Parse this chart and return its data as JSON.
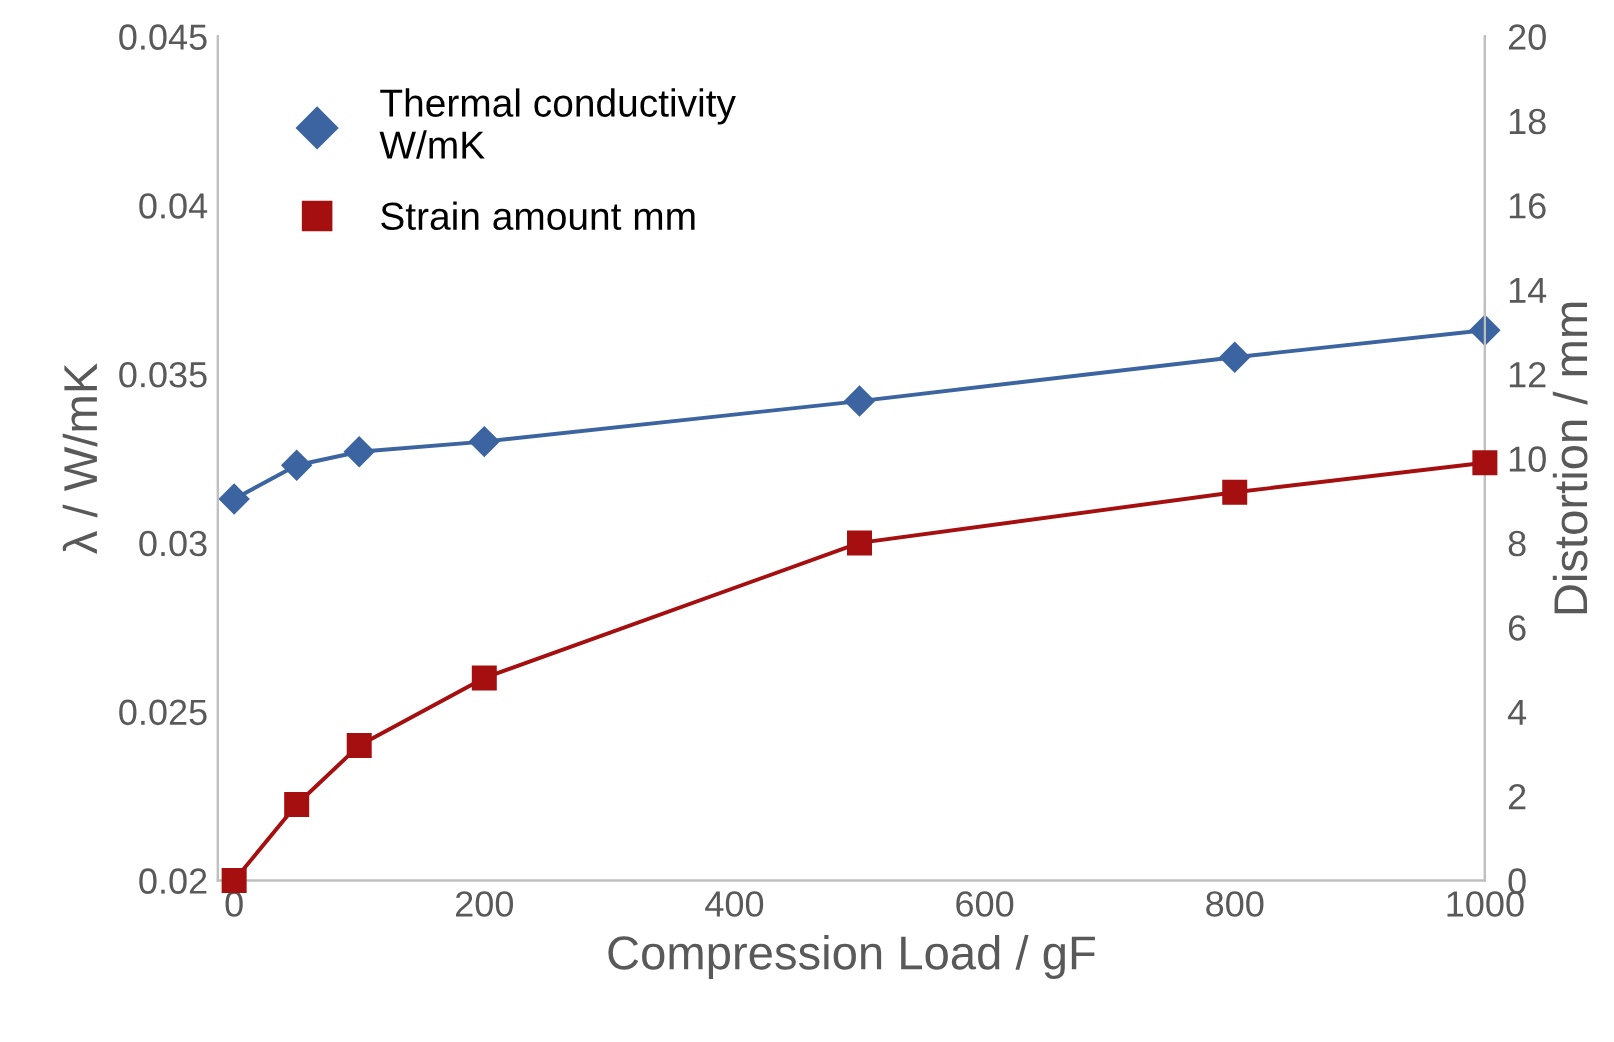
{
  "chart_data": {
    "type": "line",
    "xlabel": "Compression Load / gF",
    "ylabel": "λ / W/mK",
    "y2label": "Distortion / mm",
    "xlim": [
      -13,
      1000
    ],
    "xticks": [
      0,
      200,
      400,
      600,
      800,
      1000
    ],
    "ylim": [
      0.02,
      0.045
    ],
    "yticks": [
      0.02,
      0.025,
      0.03,
      0.035,
      0.04,
      0.045
    ],
    "y2lim": [
      0,
      20
    ],
    "y2ticks": [
      0,
      2,
      4,
      6,
      8,
      10,
      12,
      14,
      16,
      18,
      20
    ],
    "grid": false,
    "legend": "top left",
    "series": [
      {
        "name": "Thermal conductivity\nW/mK",
        "color": "#3b64a0",
        "marker": "diamond",
        "x": [
          0,
          50,
          100,
          200,
          500,
          800,
          1000
        ],
        "values": [
          0.0313,
          0.0323,
          0.0327,
          0.033,
          0.0342,
          0.0355,
          0.0363
        ]
      },
      {
        "name": "Strain amount mm",
        "color": "#a50f0f",
        "marker": "square",
        "axis": "y2",
        "x": [
          0,
          50,
          100,
          200,
          500,
          800,
          1000
        ],
        "values": [
          0,
          1.8,
          3.2,
          4.8,
          8.0,
          9.2,
          9.9
        ]
      }
    ]
  }
}
